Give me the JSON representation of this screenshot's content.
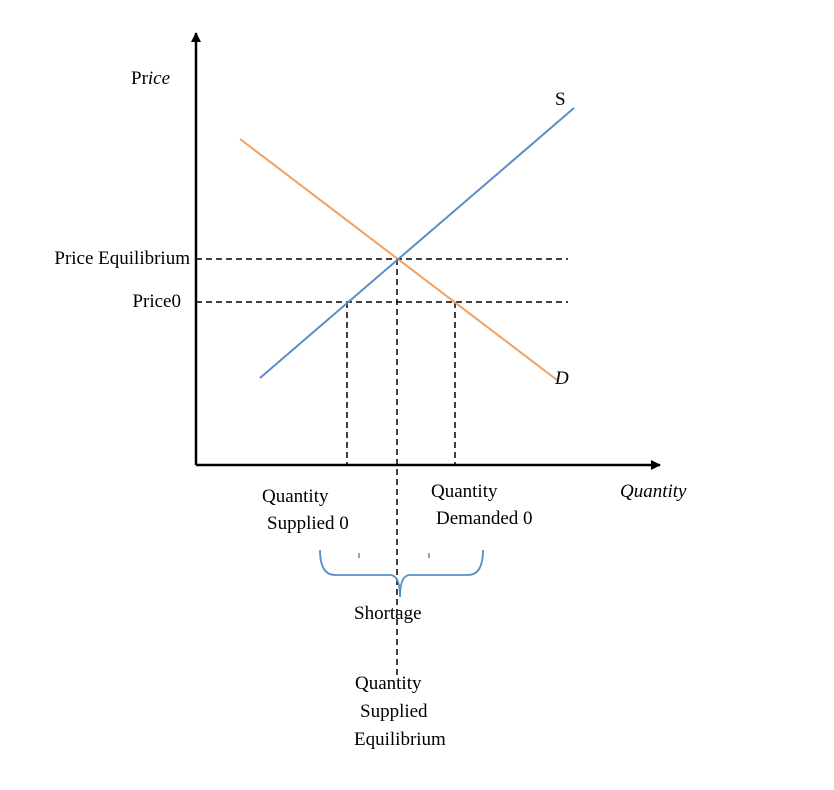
{
  "diagram": {
    "y_axis_label": {
      "upright": "Pr",
      "italic": "ice"
    },
    "x_axis_label": "Quantity",
    "supply_label": "S",
    "demand_label": "D",
    "price_equilibrium_label": "Price Equilibrium",
    "price0_label": "Price0",
    "quantity_supplied_0_label": [
      "Quantity",
      "Supplied 0"
    ],
    "quantity_demanded_0_label": [
      "Quantity",
      "Demanded 0"
    ],
    "shortage_label": "Shortage",
    "quantity_supplied_equilibrium_label": [
      "Quantity",
      "Supplied",
      "Equilibrium"
    ]
  }
}
